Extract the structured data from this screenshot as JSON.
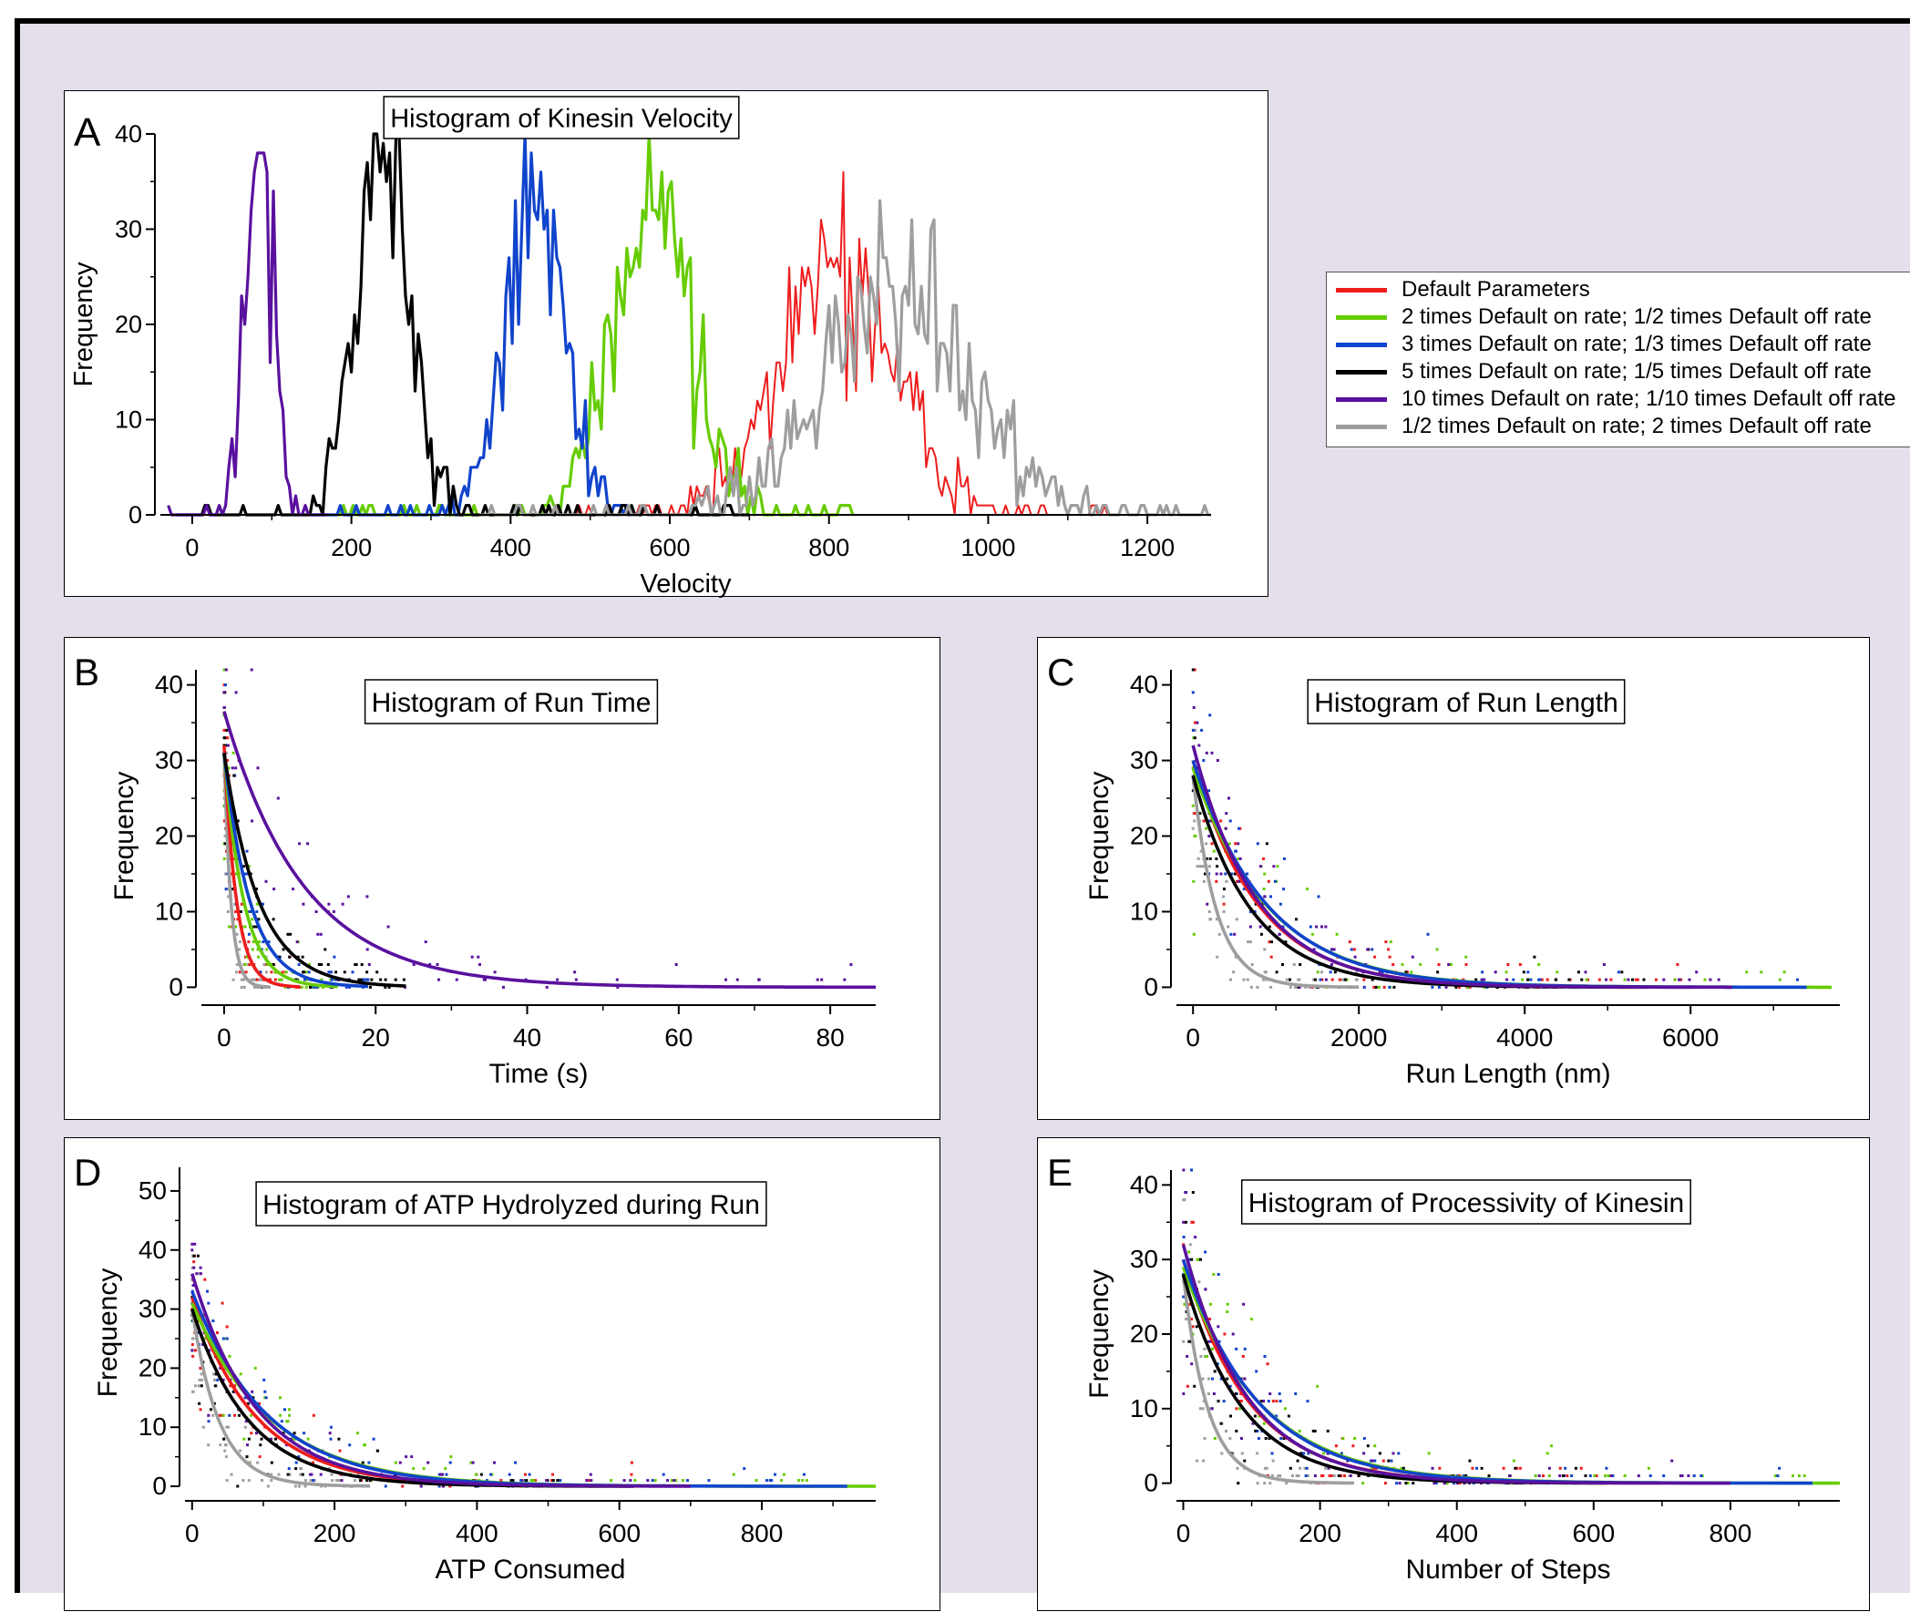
{
  "figure": {
    "legend": [
      {
        "label": "Default Parameters",
        "color": "#ee1c1c"
      },
      {
        "label": "2 times Default on rate; 1/2 times Default off rate",
        "color": "#66cc00"
      },
      {
        "label": "3 times Default on rate; 1/3 times Default off rate",
        "color": "#1144cc"
      },
      {
        "label": "5 times Default on rate; 1/5 times Default off rate",
        "color": "#000000"
      },
      {
        "label": "10 times Default on rate; 1/10 times Default off rate",
        "color": "#5a119e"
      },
      {
        "label": "1/2 times Default on rate; 2 times Default off rate",
        "color": "#9e9e9e"
      }
    ]
  },
  "chart_data": [
    {
      "panel": "A",
      "type": "line",
      "title": "Histogram of Kinesin Velocity",
      "xlabel": "Velocity",
      "ylabel": "Frequency",
      "xlim": [
        -40,
        1280
      ],
      "ylim": [
        0,
        40
      ],
      "xticks": [
        0,
        200,
        400,
        600,
        800,
        1000,
        1200
      ],
      "yticks": [
        0,
        10,
        20,
        30,
        40
      ],
      "series": [
        {
          "color": "#ee1c1c",
          "peak_x": 810,
          "peak_y": 27,
          "sigma": 70,
          "range": [
            430,
            1150
          ]
        },
        {
          "color": "#66cc00",
          "peak_x": 580,
          "peak_y": 32,
          "sigma": 48,
          "range": [
            150,
            830
          ]
        },
        {
          "color": "#1144cc",
          "peak_x": 430,
          "peak_y": 32,
          "sigma": 38,
          "range": [
            150,
            560
          ]
        },
        {
          "color": "#000000",
          "peak_x": 240,
          "peak_y": 39,
          "sigma": 33,
          "range": [
            -20,
            700
          ]
        },
        {
          "color": "#5a119e",
          "peak_x": 85,
          "peak_y": 38,
          "sigma": 16,
          "range": [
            -30,
            170
          ]
        },
        {
          "color": "#9e9e9e",
          "peak_x": 880,
          "peak_y": 24,
          "sigma": 95,
          "range": [
            360,
            1280
          ]
        }
      ]
    },
    {
      "panel": "B",
      "type": "scatter",
      "title": "Histogram of Run Time",
      "xlabel": "Time (s)",
      "ylabel": "Frequency",
      "xlim": [
        -3,
        86
      ],
      "ylim": [
        -2,
        42
      ],
      "xticks": [
        0,
        20,
        40,
        60,
        80
      ],
      "yticks": [
        0,
        10,
        20,
        30,
        40
      ],
      "series": [
        {
          "color": "#9e9e9e",
          "A": 31,
          "tau": 0.9,
          "xmax": 6
        },
        {
          "color": "#ee1c1c",
          "A": 32,
          "tau": 1.6,
          "xmax": 10
        },
        {
          "color": "#66cc00",
          "A": 31,
          "tau": 2.6,
          "xmax": 15
        },
        {
          "color": "#1144cc",
          "A": 31,
          "tau": 3.4,
          "xmax": 19
        },
        {
          "color": "#000000",
          "A": 31,
          "tau": 4.6,
          "xmax": 24
        },
        {
          "color": "#5a119e",
          "A": 36.5,
          "tau": 10.5,
          "xmax": 86
        }
      ]
    },
    {
      "panel": "C",
      "type": "scatter",
      "title": "Histogram of Run Length",
      "xlabel": "Run Length (nm)",
      "ylabel": "Frequency",
      "xlim": [
        -200,
        7800
      ],
      "ylim": [
        -2,
        42
      ],
      "xticks": [
        0,
        2000,
        4000,
        6000
      ],
      "yticks": [
        0,
        10,
        20,
        30,
        40
      ],
      "series": [
        {
          "color": "#9e9e9e",
          "A": 28,
          "tau": 280,
          "xmax": 2000
        },
        {
          "color": "#ee1c1c",
          "A": 30,
          "tau": 780,
          "xmax": 6000
        },
        {
          "color": "#66cc00",
          "A": 29,
          "tau": 900,
          "xmax": 7700
        },
        {
          "color": "#1144cc",
          "A": 30,
          "tau": 880,
          "xmax": 7400
        },
        {
          "color": "#000000",
          "A": 28,
          "tau": 700,
          "xmax": 5500
        },
        {
          "color": "#5a119e",
          "A": 32,
          "tau": 760,
          "xmax": 6500
        }
      ]
    },
    {
      "panel": "D",
      "type": "scatter",
      "title": "Histogram of ATP Hydrolyzed during Run",
      "xlabel": "ATP Consumed",
      "ylabel": "Frequency",
      "xlim": [
        -10,
        960
      ],
      "ylim": [
        -2,
        54
      ],
      "xticks": [
        0,
        200,
        400,
        600,
        800
      ],
      "yticks": [
        0,
        10,
        20,
        30,
        40,
        50
      ],
      "series": [
        {
          "color": "#9e9e9e",
          "A": 30,
          "tau": 38,
          "xmax": 250
        },
        {
          "color": "#ee1c1c",
          "A": 32,
          "tau": 90,
          "xmax": 620
        },
        {
          "color": "#66cc00",
          "A": 31,
          "tau": 110,
          "xmax": 960
        },
        {
          "color": "#1144cc",
          "A": 33,
          "tau": 105,
          "xmax": 920
        },
        {
          "color": "#000000",
          "A": 30,
          "tau": 80,
          "xmax": 620
        },
        {
          "color": "#5a119e",
          "A": 36,
          "tau": 90,
          "xmax": 700
        }
      ]
    },
    {
      "panel": "E",
      "type": "scatter",
      "title": "Histogram of Processivity of Kinesin",
      "xlabel": "Number of Steps",
      "ylabel": "Frequency",
      "xlim": [
        -10,
        960
      ],
      "ylim": [
        -2,
        42
      ],
      "xticks": [
        0,
        200,
        400,
        600,
        800
      ],
      "yticks": [
        0,
        10,
        20,
        30,
        40
      ],
      "series": [
        {
          "color": "#9e9e9e",
          "A": 28,
          "tau": 35,
          "xmax": 250
        },
        {
          "color": "#ee1c1c",
          "A": 30,
          "tau": 95,
          "xmax": 700
        },
        {
          "color": "#66cc00",
          "A": 29,
          "tau": 112,
          "xmax": 960
        },
        {
          "color": "#1144cc",
          "A": 30,
          "tau": 108,
          "xmax": 920
        },
        {
          "color": "#000000",
          "A": 28,
          "tau": 85,
          "xmax": 620
        },
        {
          "color": "#5a119e",
          "A": 32,
          "tau": 92,
          "xmax": 800
        }
      ]
    }
  ]
}
